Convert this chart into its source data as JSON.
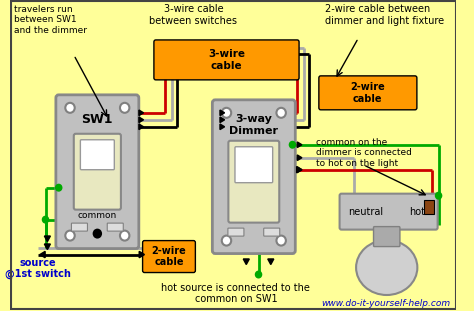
{
  "bg_color": "#FFFF99",
  "orange_color": "#FF9900",
  "green_color": "#00AA00",
  "red_color": "#CC0000",
  "black_color": "#000000",
  "gray_color": "#AAAAAA",
  "blue_color": "#0000CC",
  "white_color": "#FFFFFF",
  "annotations": {
    "top_left": "travelers run\nbetween SW1\nand the dimmer",
    "top_mid": "3-wire cable\nbetween switches",
    "top_right": "2-wire cable between\ndimmer and light fixture",
    "bottom_left_blue": "source\n@1st switch",
    "bottom_mid": "hot source is connected to the\ncommon on SW1",
    "bottom_right": "www.do-it-yourself-help.com",
    "right_note": "common on the\ndimmer is connected\nto hot on the light",
    "neutral_label": "neutral",
    "hot_label": "hot",
    "sw1_label": "SW1",
    "common_label": "common",
    "dimmer_label": "3-way\nDimmer",
    "cable3_label": "3-wire\ncable",
    "cable2_label": "2-wire\ncable"
  }
}
